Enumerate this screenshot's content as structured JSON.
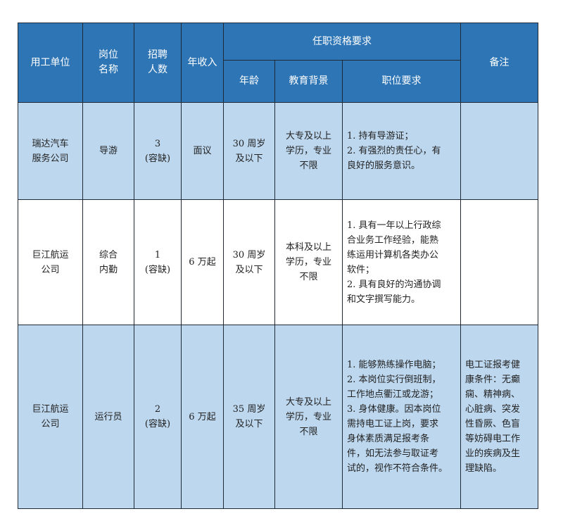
{
  "header": {
    "unit": "用工单位",
    "position": "岗位\n名称",
    "count": "招聘\n人数",
    "income": "年收入",
    "qualifications": "任职资格要求",
    "age": "年龄",
    "education": "教育背景",
    "requirements": "职位要求",
    "notes": "备注"
  },
  "rows": [
    {
      "unit": "瑞达汽车\n服务公司",
      "position": "导游",
      "count": "3\n(容缺)",
      "income": "面议",
      "age": "30 周岁\n及以下",
      "education": "大专及以上\n学历，专业\n不限",
      "requirements": "1. 持有导游证；\n2. 有强烈的责任心，有\n良好的服务意识。",
      "notes": ""
    },
    {
      "unit": "巨江航运\n公司",
      "position": "综合\n内勤",
      "count": "1\n(容缺)",
      "income": "6 万起",
      "age": "30 周岁\n及以下",
      "education": "本科及以上\n学历，专业\n不限",
      "requirements": "1. 具有一年以上行政综\n合业务工作经验，能熟\n练运用计算机各类办公\n软件；\n2. 具有良好的沟通协调\n和文字撰写能力。",
      "notes": ""
    },
    {
      "unit": "巨江航运\n公司",
      "position": "运行员",
      "count": "2\n(容缺)",
      "income": "6 万起",
      "age": "35 周岁\n及以下",
      "education": "大专及以上\n学历，专业\n不限",
      "requirements": "1. 能够熟练操作电脑；\n2. 本岗位实行倒班制，\n工作地点衢江或龙游；\n3. 身体健康。因本岗位\n需持电工证上岗，要求\n身体素质满足报考条\n件，如无法参与取证考\n试的，视作不符合条件。",
      "notes": "电工证报考健\n康条件：无癫\n痫、精神病、\n心脏病、突发\n性昏厥、色盲\n等妨碍电工作\n业的疾病及生\n理缺陷。"
    }
  ],
  "colors": {
    "header": "#2e75b6",
    "row_blue": "#bdd7ee",
    "row_white": "#ffffff"
  }
}
